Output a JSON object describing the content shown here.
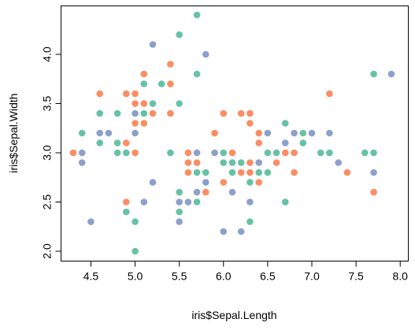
{
  "chart_data": {
    "type": "scatter",
    "title": "",
    "xlabel": "iris$Sepal.Length",
    "ylabel": "iris$Sepal.Width",
    "xlim": [
      4.3,
      7.9
    ],
    "ylim": [
      2.0,
      4.4
    ],
    "x_ticks": [
      4.5,
      5.0,
      5.5,
      6.0,
      6.5,
      7.0,
      7.5,
      8.0
    ],
    "x_tick_labels": [
      "4.5",
      "5.0",
      "5.5",
      "6.0",
      "6.5",
      "7.0",
      "7.5",
      "8.0"
    ],
    "y_ticks": [
      2.0,
      2.5,
      3.0,
      3.5,
      4.0
    ],
    "y_tick_labels": [
      "2.0",
      "2.5",
      "3.0",
      "3.5",
      "4.0"
    ],
    "grid": false,
    "legend": "none",
    "colors": {
      "orange": "#FC8D62",
      "green": "#66C2A5",
      "blue": "#8DA0CB"
    },
    "points": [
      {
        "x": 4.3,
        "y": 3.0,
        "color": "orange"
      },
      {
        "x": 4.4,
        "y": 2.9,
        "color": "blue"
      },
      {
        "x": 4.4,
        "y": 3.0,
        "color": "blue"
      },
      {
        "x": 4.4,
        "y": 3.2,
        "color": "green"
      },
      {
        "x": 4.5,
        "y": 2.3,
        "color": "blue"
      },
      {
        "x": 4.6,
        "y": 3.1,
        "color": "green"
      },
      {
        "x": 4.6,
        "y": 3.2,
        "color": "blue"
      },
      {
        "x": 4.6,
        "y": 3.4,
        "color": "green"
      },
      {
        "x": 4.6,
        "y": 3.6,
        "color": "orange"
      },
      {
        "x": 4.7,
        "y": 3.2,
        "color": "blue"
      },
      {
        "x": 4.8,
        "y": 3.0,
        "color": "green"
      },
      {
        "x": 4.8,
        "y": 3.1,
        "color": "green"
      },
      {
        "x": 4.8,
        "y": 3.4,
        "color": "green"
      },
      {
        "x": 4.9,
        "y": 2.4,
        "color": "green"
      },
      {
        "x": 4.9,
        "y": 2.5,
        "color": "orange"
      },
      {
        "x": 4.9,
        "y": 3.0,
        "color": "green"
      },
      {
        "x": 4.9,
        "y": 3.1,
        "color": "orange"
      },
      {
        "x": 4.9,
        "y": 3.6,
        "color": "orange"
      },
      {
        "x": 5.0,
        "y": 2.0,
        "color": "green"
      },
      {
        "x": 5.0,
        "y": 2.3,
        "color": "green"
      },
      {
        "x": 5.0,
        "y": 3.0,
        "color": "orange"
      },
      {
        "x": 5.0,
        "y": 3.2,
        "color": "blue"
      },
      {
        "x": 5.0,
        "y": 3.3,
        "color": "orange"
      },
      {
        "x": 5.0,
        "y": 3.4,
        "color": "blue"
      },
      {
        "x": 5.0,
        "y": 3.5,
        "color": "orange"
      },
      {
        "x": 5.0,
        "y": 3.6,
        "color": "orange"
      },
      {
        "x": 5.1,
        "y": 2.5,
        "color": "blue"
      },
      {
        "x": 5.1,
        "y": 3.3,
        "color": "orange"
      },
      {
        "x": 5.1,
        "y": 3.4,
        "color": "green"
      },
      {
        "x": 5.1,
        "y": 3.5,
        "color": "orange"
      },
      {
        "x": 5.1,
        "y": 3.7,
        "color": "green"
      },
      {
        "x": 5.1,
        "y": 3.8,
        "color": "orange"
      },
      {
        "x": 5.2,
        "y": 2.7,
        "color": "blue"
      },
      {
        "x": 5.2,
        "y": 3.4,
        "color": "orange"
      },
      {
        "x": 5.2,
        "y": 3.5,
        "color": "green"
      },
      {
        "x": 5.2,
        "y": 4.1,
        "color": "blue"
      },
      {
        "x": 5.3,
        "y": 3.7,
        "color": "green"
      },
      {
        "x": 5.4,
        "y": 3.0,
        "color": "green"
      },
      {
        "x": 5.4,
        "y": 3.4,
        "color": "orange"
      },
      {
        "x": 5.4,
        "y": 3.7,
        "color": "orange"
      },
      {
        "x": 5.4,
        "y": 3.9,
        "color": "orange"
      },
      {
        "x": 5.5,
        "y": 2.3,
        "color": "blue"
      },
      {
        "x": 5.5,
        "y": 2.4,
        "color": "green"
      },
      {
        "x": 5.5,
        "y": 2.5,
        "color": "blue"
      },
      {
        "x": 5.5,
        "y": 2.6,
        "color": "green"
      },
      {
        "x": 5.5,
        "y": 3.5,
        "color": "green"
      },
      {
        "x": 5.5,
        "y": 4.2,
        "color": "green"
      },
      {
        "x": 5.6,
        "y": 2.5,
        "color": "blue"
      },
      {
        "x": 5.6,
        "y": 2.8,
        "color": "orange"
      },
      {
        "x": 5.6,
        "y": 2.9,
        "color": "orange"
      },
      {
        "x": 5.6,
        "y": 3.0,
        "color": "orange"
      },
      {
        "x": 5.7,
        "y": 2.5,
        "color": "green"
      },
      {
        "x": 5.7,
        "y": 2.6,
        "color": "blue"
      },
      {
        "x": 5.7,
        "y": 2.8,
        "color": "green"
      },
      {
        "x": 5.7,
        "y": 2.9,
        "color": "orange"
      },
      {
        "x": 5.7,
        "y": 3.0,
        "color": "blue"
      },
      {
        "x": 5.7,
        "y": 3.8,
        "color": "green"
      },
      {
        "x": 5.7,
        "y": 4.4,
        "color": "green"
      },
      {
        "x": 5.8,
        "y": 2.6,
        "color": "orange"
      },
      {
        "x": 5.8,
        "y": 2.7,
        "color": "blue"
      },
      {
        "x": 5.8,
        "y": 2.8,
        "color": "green"
      },
      {
        "x": 5.8,
        "y": 4.0,
        "color": "blue"
      },
      {
        "x": 5.9,
        "y": 3.0,
        "color": "blue"
      },
      {
        "x": 5.9,
        "y": 3.2,
        "color": "orange"
      },
      {
        "x": 6.0,
        "y": 2.2,
        "color": "blue"
      },
      {
        "x": 6.0,
        "y": 2.7,
        "color": "orange"
      },
      {
        "x": 6.0,
        "y": 2.9,
        "color": "green"
      },
      {
        "x": 6.0,
        "y": 3.0,
        "color": "green"
      },
      {
        "x": 6.0,
        "y": 3.4,
        "color": "orange"
      },
      {
        "x": 6.1,
        "y": 2.6,
        "color": "blue"
      },
      {
        "x": 6.1,
        "y": 2.8,
        "color": "green"
      },
      {
        "x": 6.1,
        "y": 2.9,
        "color": "green"
      },
      {
        "x": 6.1,
        "y": 3.0,
        "color": "orange"
      },
      {
        "x": 6.2,
        "y": 2.2,
        "color": "blue"
      },
      {
        "x": 6.2,
        "y": 2.8,
        "color": "orange"
      },
      {
        "x": 6.2,
        "y": 2.9,
        "color": "green"
      },
      {
        "x": 6.2,
        "y": 3.4,
        "color": "orange"
      },
      {
        "x": 6.3,
        "y": 2.3,
        "color": "green"
      },
      {
        "x": 6.3,
        "y": 2.5,
        "color": "blue"
      },
      {
        "x": 6.3,
        "y": 2.7,
        "color": "green"
      },
      {
        "x": 6.3,
        "y": 2.8,
        "color": "orange"
      },
      {
        "x": 6.3,
        "y": 2.9,
        "color": "orange"
      },
      {
        "x": 6.3,
        "y": 3.3,
        "color": "orange"
      },
      {
        "x": 6.3,
        "y": 3.4,
        "color": "orange"
      },
      {
        "x": 6.4,
        "y": 2.7,
        "color": "orange"
      },
      {
        "x": 6.4,
        "y": 2.8,
        "color": "green"
      },
      {
        "x": 6.4,
        "y": 2.9,
        "color": "blue"
      },
      {
        "x": 6.4,
        "y": 3.1,
        "color": "orange"
      },
      {
        "x": 6.4,
        "y": 3.2,
        "color": "orange"
      },
      {
        "x": 6.5,
        "y": 2.8,
        "color": "green"
      },
      {
        "x": 6.5,
        "y": 3.0,
        "color": "green"
      },
      {
        "x": 6.5,
        "y": 3.2,
        "color": "blue"
      },
      {
        "x": 6.6,
        "y": 2.9,
        "color": "orange"
      },
      {
        "x": 6.6,
        "y": 3.0,
        "color": "green"
      },
      {
        "x": 6.7,
        "y": 2.5,
        "color": "green"
      },
      {
        "x": 6.7,
        "y": 3.0,
        "color": "orange"
      },
      {
        "x": 6.7,
        "y": 3.1,
        "color": "blue"
      },
      {
        "x": 6.7,
        "y": 3.3,
        "color": "green"
      },
      {
        "x": 6.8,
        "y": 2.8,
        "color": "orange"
      },
      {
        "x": 6.8,
        "y": 3.0,
        "color": "orange"
      },
      {
        "x": 6.8,
        "y": 3.2,
        "color": "blue"
      },
      {
        "x": 6.9,
        "y": 3.1,
        "color": "green"
      },
      {
        "x": 6.9,
        "y": 3.2,
        "color": "green"
      },
      {
        "x": 7.0,
        "y": 3.2,
        "color": "blue"
      },
      {
        "x": 7.1,
        "y": 3.0,
        "color": "green"
      },
      {
        "x": 7.2,
        "y": 3.0,
        "color": "green"
      },
      {
        "x": 7.2,
        "y": 3.2,
        "color": "blue"
      },
      {
        "x": 7.2,
        "y": 3.6,
        "color": "orange"
      },
      {
        "x": 7.3,
        "y": 2.9,
        "color": "blue"
      },
      {
        "x": 7.4,
        "y": 2.8,
        "color": "orange"
      },
      {
        "x": 7.6,
        "y": 3.0,
        "color": "green"
      },
      {
        "x": 7.7,
        "y": 2.6,
        "color": "orange"
      },
      {
        "x": 7.7,
        "y": 2.8,
        "color": "blue"
      },
      {
        "x": 7.7,
        "y": 3.0,
        "color": "green"
      },
      {
        "x": 7.7,
        "y": 3.8,
        "color": "green"
      },
      {
        "x": 7.9,
        "y": 3.8,
        "color": "blue"
      }
    ]
  }
}
